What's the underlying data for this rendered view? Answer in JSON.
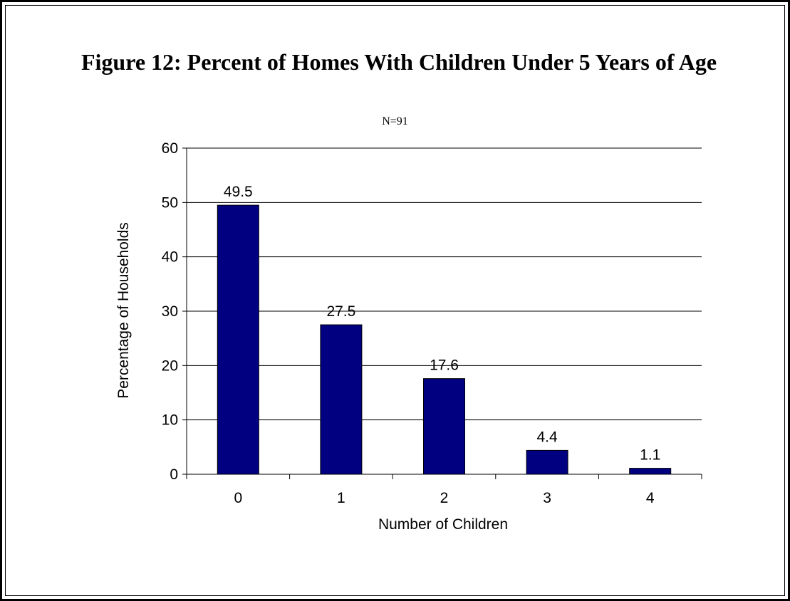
{
  "chart_data": {
    "type": "bar",
    "title": "Figure 12: Percent of Homes With Children Under 5 Years of Age",
    "subtitle": "N=91",
    "xlabel": "Number of Children",
    "ylabel": "Percentage of Households",
    "categories": [
      "0",
      "1",
      "2",
      "3",
      "4"
    ],
    "values": [
      49.5,
      27.5,
      17.6,
      4.4,
      1.1
    ],
    "value_labels": [
      "49.5",
      "27.5",
      "17.6",
      "4.4",
      "1.1"
    ],
    "ylim": [
      0,
      60
    ],
    "yticks": [
      0,
      10,
      20,
      30,
      40,
      50,
      60
    ],
    "grid": true,
    "legend": "none",
    "colors": {
      "bar": "#000080",
      "grid": "#000000"
    }
  }
}
